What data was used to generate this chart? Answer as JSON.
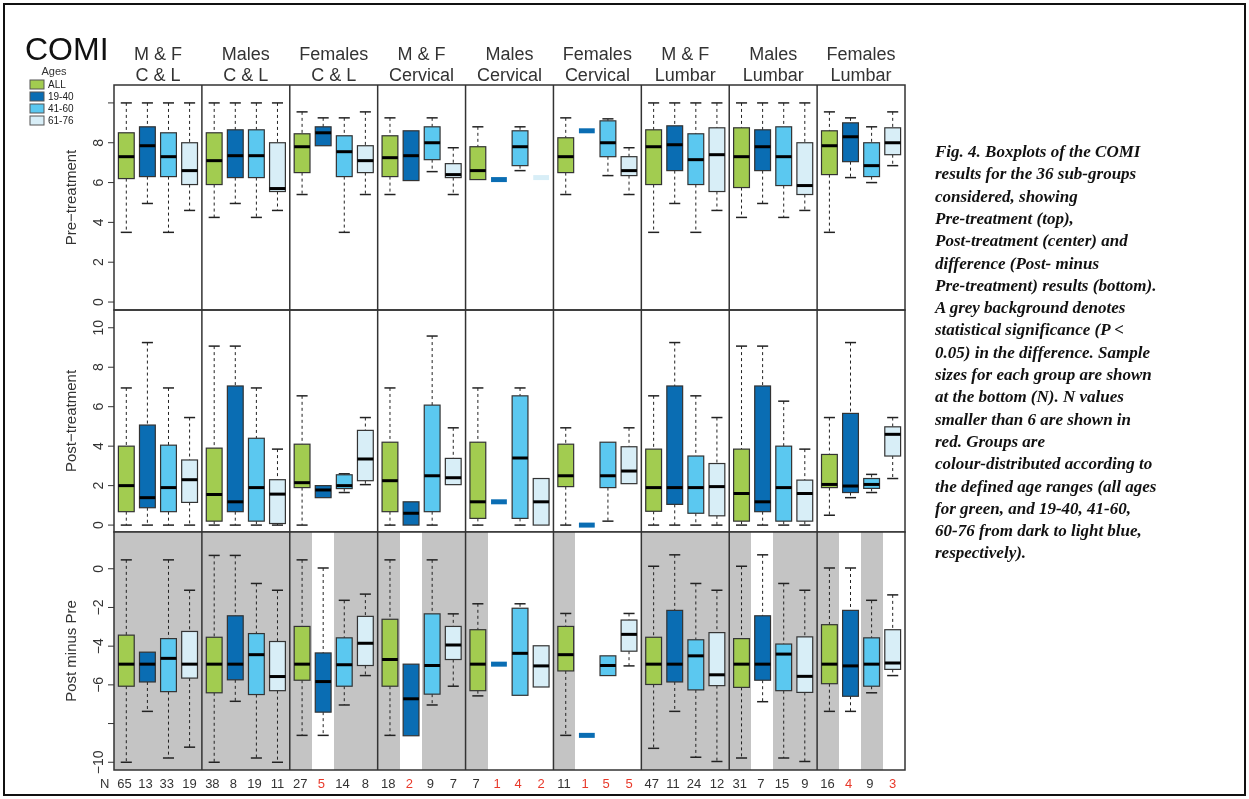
{
  "chart_data": [
    {
      "type": "box",
      "title": "COMI",
      "ylabel": "Pre−treatment",
      "legend_title": "Ages",
      "legend": "top left",
      "categories": [
        "M & F\nC & L",
        "Males\nC & L",
        "Females\nC & L",
        "M & F\nCervical",
        "Males\nCervical",
        "Females\nCervical",
        "M & F\nLumbar",
        "Males\nLumbar",
        "Females\nLumbar"
      ],
      "ylim": [
        -0.4,
        10.9
      ],
      "yticks": [
        0,
        2,
        4,
        6,
        8,
        {
          "value": 10,
          "label": null
        }
      ],
      "annotations": [
        "Fig. 4. Boxplots of the COMI results for the 36 sub-groups considered, showing Pre-treatment (top), Post-treatment (center) and difference (Post- minus Pre-treatment) results (bottom). A grey background denotes statistical significance (P < 0.05) in the difference. Sample sizes for each group are shown at the bottom (N). N values smaller than 6 are shown in red. Groups are colour-distributed according to the defined age ranges (all ages for green, and 19-40, 41-60, 60-76 from dark to light blue, respectively)."
      ],
      "series": [
        {
          "name": "ALL",
          "color": "#a2cc50",
          "boxes": [
            {
              "low": 3.5,
              "q1": 6.2,
              "median": 7.3,
              "q3": 8.5,
              "high": 10
            },
            {
              "low": 4.25,
              "q1": 5.9,
              "median": 7.1,
              "q3": 8.5,
              "high": 10
            },
            {
              "low": 5.4,
              "q1": 6.5,
              "median": 7.8,
              "q3": 8.45,
              "high": 9.55
            },
            {
              "low": 5.4,
              "q1": 6.3,
              "median": 7.25,
              "q3": 8.35,
              "high": 9.25
            },
            {
              "low": 6.15,
              "q1": 6.15,
              "median": 6.6,
              "q3": 7.8,
              "high": 8.8
            },
            {
              "low": 5.4,
              "q1": 6.5,
              "median": 7.3,
              "q3": 8.25,
              "high": 9.25
            },
            {
              "low": 3.5,
              "q1": 5.9,
              "median": 7.8,
              "q3": 8.65,
              "high": 10
            },
            {
              "low": 4.25,
              "q1": 5.75,
              "median": 7.3,
              "q3": 8.75,
              "high": 10
            },
            {
              "low": 3.5,
              "q1": 6.4,
              "median": 7.85,
              "q3": 8.6,
              "high": 9.55
            }
          ]
        },
        {
          "name": "19-40",
          "color": "#0a6db3",
          "boxes": [
            {
              "low": 4.95,
              "q1": 6.3,
              "median": 7.85,
              "q3": 8.8,
              "high": 10
            },
            {
              "low": 4.95,
              "q1": 6.25,
              "median": 7.35,
              "q3": 8.65,
              "high": 10
            },
            {
              "low": 7.85,
              "q1": 7.85,
              "median": 8.5,
              "q3": 8.8,
              "high": 9.25
            },
            {
              "low": 6.1,
              "q1": 6.1,
              "median": 7.35,
              "q3": 8.6,
              "high": 8.6
            },
            {
              "low": 6.15,
              "q1": 6.15,
              "median": 6.15,
              "q3": 6.15,
              "high": 6.15
            },
            {
              "low": 8.6,
              "q1": 8.6,
              "median": 8.6,
              "q3": 8.6,
              "high": 8.6
            },
            {
              "low": 4.95,
              "q1": 6.6,
              "median": 7.9,
              "q3": 8.85,
              "high": 10
            },
            {
              "low": 4.95,
              "q1": 6.6,
              "median": 7.8,
              "q3": 8.65,
              "high": 10
            },
            {
              "low": 6.25,
              "q1": 7.05,
              "median": 8.3,
              "q3": 9.0,
              "high": 9.25
            }
          ]
        },
        {
          "name": "41-60",
          "color": "#5bc8f0",
          "boxes": [
            {
              "low": 3.5,
              "q1": 6.3,
              "median": 7.3,
              "q3": 8.5,
              "high": 10
            },
            {
              "low": 4.25,
              "q1": 6.25,
              "median": 7.35,
              "q3": 8.65,
              "high": 10
            },
            {
              "low": 3.5,
              "q1": 6.3,
              "median": 7.55,
              "q3": 8.35,
              "high": 9.25
            },
            {
              "low": 6.55,
              "q1": 7.15,
              "median": 8.0,
              "q3": 8.8,
              "high": 9.25
            },
            {
              "low": 6.6,
              "q1": 6.85,
              "median": 7.8,
              "q3": 8.6,
              "high": 8.8
            },
            {
              "low": 6.35,
              "q1": 7.3,
              "median": 8.0,
              "q3": 9.1,
              "high": 9.2
            },
            {
              "low": 3.5,
              "q1": 5.9,
              "median": 7.15,
              "q3": 8.45,
              "high": 10
            },
            {
              "low": 4.25,
              "q1": 5.85,
              "median": 7.3,
              "q3": 8.8,
              "high": 10
            },
            {
              "low": 6.0,
              "q1": 6.3,
              "median": 6.85,
              "q3": 8.0,
              "high": 8.8
            }
          ]
        },
        {
          "name": "61-76",
          "color": "#d8eef7",
          "boxes": [
            {
              "low": 4.6,
              "q1": 5.9,
              "median": 6.6,
              "q3": 8.0,
              "high": 10
            },
            {
              "low": 4.6,
              "q1": 5.55,
              "median": 5.7,
              "q3": 8.0,
              "high": 10
            },
            {
              "low": 5.4,
              "q1": 6.5,
              "median": 7.1,
              "q3": 7.85,
              "high": 9.55
            },
            {
              "low": 5.4,
              "q1": 6.25,
              "median": 6.4,
              "q3": 6.95,
              "high": 7.75
            },
            {
              "low": 6.25,
              "q1": 6.25,
              "median": 6.25,
              "q3": 6.25,
              "high": 6.25
            },
            {
              "low": 5.4,
              "q1": 6.35,
              "median": 6.6,
              "q3": 7.3,
              "high": 7.75
            },
            {
              "low": 4.6,
              "q1": 5.55,
              "median": 7.4,
              "q3": 8.75,
              "high": 10
            },
            {
              "low": 4.6,
              "q1": 5.4,
              "median": 5.85,
              "q3": 8.0,
              "high": 10
            },
            {
              "low": 6.85,
              "q1": 7.4,
              "median": 8.0,
              "q3": 8.75,
              "high": 9.55
            }
          ]
        }
      ]
    },
    {
      "type": "box",
      "ylabel": "Post−treatment",
      "tick_labels": "y",
      "ylim": [
        -0.35,
        10.9
      ],
      "yticks": [
        0,
        2,
        4,
        6,
        8,
        10
      ],
      "series": [
        {
          "color": "#a2cc50",
          "boxes": [
            {
              "low": 0,
              "q1": 0.68,
              "median": 2.0,
              "q3": 4.0,
              "high": 6.95
            },
            {
              "low": 0,
              "q1": 0.2,
              "median": 1.55,
              "q3": 3.9,
              "high": 9.07
            },
            {
              "low": 0,
              "q1": 1.9,
              "median": 2.15,
              "q3": 4.1,
              "high": 6.55
            },
            {
              "low": 0,
              "q1": 0.68,
              "median": 2.25,
              "q3": 4.2,
              "high": 6.95
            },
            {
              "low": 0,
              "q1": 0.34,
              "median": 1.18,
              "q3": 4.2,
              "high": 6.95
            },
            {
              "low": 0,
              "q1": 1.95,
              "median": 2.5,
              "q3": 4.1,
              "high": 4.93
            },
            {
              "low": 0,
              "q1": 0.7,
              "median": 1.9,
              "q3": 3.85,
              "high": 6.55
            },
            {
              "low": 0,
              "q1": 0.2,
              "median": 1.6,
              "q3": 3.85,
              "high": 9.07
            },
            {
              "low": 0.5,
              "q1": 1.9,
              "median": 2.06,
              "q3": 3.58,
              "high": 5.45
            }
          ]
        },
        {
          "color": "#0a6db3",
          "boxes": [
            {
              "low": 0,
              "q1": 0.88,
              "median": 1.39,
              "q3": 5.07,
              "high": 9.25
            },
            {
              "low": 0,
              "q1": 0.68,
              "median": 1.18,
              "q3": 7.05,
              "high": 9.07
            },
            {
              "low": 1.39,
              "q1": 1.39,
              "median": 1.78,
              "q3": 2.0,
              "high": 2.0
            },
            {
              "low": 0,
              "q1": 0,
              "median": 0.6,
              "q3": 1.18,
              "high": 1.18
            },
            {
              "low": 1.18,
              "q1": 1.18,
              "median": 1.18,
              "q3": 1.18,
              "high": 1.18
            },
            {
              "low": 0,
              "q1": 0,
              "median": 0,
              "q3": 0,
              "high": 0
            },
            {
              "low": 0,
              "q1": 1.05,
              "median": 1.9,
              "q3": 7.05,
              "high": 9.25
            },
            {
              "low": 0,
              "q1": 0.68,
              "median": 1.18,
              "q3": 7.05,
              "high": 9.07
            },
            {
              "low": 1.39,
              "q1": 1.65,
              "median": 1.98,
              "q3": 5.66,
              "high": 9.25
            }
          ]
        },
        {
          "color": "#5bc8f0",
          "boxes": [
            {
              "low": 0,
              "q1": 0.68,
              "median": 1.9,
              "q3": 4.05,
              "high": 6.95
            },
            {
              "low": 0,
              "q1": 0.2,
              "median": 1.9,
              "q3": 4.4,
              "high": 6.95
            },
            {
              "low": 1.65,
              "q1": 1.85,
              "median": 2.0,
              "q3": 2.55,
              "high": 2.6
            },
            {
              "low": 0,
              "q1": 0.68,
              "median": 2.5,
              "q3": 6.08,
              "high": 9.58
            },
            {
              "low": 0,
              "q1": 0.34,
              "median": 3.4,
              "q3": 6.55,
              "high": 6.95
            },
            {
              "low": 0.2,
              "q1": 1.9,
              "median": 2.5,
              "q3": 4.2,
              "high": 4.2
            },
            {
              "low": 0,
              "q1": 0.6,
              "median": 1.9,
              "q3": 3.5,
              "high": 6.55
            },
            {
              "low": 0,
              "q1": 0.2,
              "median": 1.9,
              "q3": 4.0,
              "high": 6.28
            },
            {
              "low": 1.65,
              "q1": 1.86,
              "median": 2.06,
              "q3": 2.36,
              "high": 2.57
            }
          ]
        },
        {
          "color": "#d8eef7",
          "boxes": [
            {
              "low": 0,
              "q1": 1.15,
              "median": 2.3,
              "q3": 3.3,
              "high": 5.45
            },
            {
              "low": 0,
              "q1": 0.08,
              "median": 1.57,
              "q3": 2.3,
              "high": 3.85
            },
            {
              "low": 2.05,
              "q1": 2.25,
              "median": 3.35,
              "q3": 4.8,
              "high": 5.45
            },
            {
              "low": 2.05,
              "q1": 2.05,
              "median": 2.4,
              "q3": 3.38,
              "high": 4.93
            },
            {
              "low": 0,
              "q1": 0,
              "median": 1.18,
              "q3": 2.36,
              "high": 2.36
            },
            {
              "low": 2.1,
              "q1": 2.1,
              "median": 2.74,
              "q3": 3.97,
              "high": 4.93
            },
            {
              "low": 0,
              "q1": 0.47,
              "median": 1.95,
              "q3": 3.12,
              "high": 5.45
            },
            {
              "low": 0,
              "q1": 0.2,
              "median": 1.6,
              "q3": 2.28,
              "high": 3.85
            },
            {
              "low": 2.36,
              "q1": 3.5,
              "median": 4.6,
              "q3": 4.98,
              "high": 5.45
            }
          ]
        }
      ]
    },
    {
      "type": "box",
      "ylabel": "Post minus Pre",
      "tick_labels": "y",
      "ylim": [
        -10.4,
        1.9
      ],
      "yticks": [
        {
          "value": -10,
          "label": "−10"
        },
        {
          "value": -8,
          "label": null
        },
        {
          "value": -6,
          "label": "−6"
        },
        {
          "value": -4,
          "label": "−4"
        },
        {
          "value": -2,
          "label": "−2"
        },
        0
      ],
      "annotations": [
        "N",
        "65 13 33 19",
        "38 8 19 11",
        "27 5 14 8",
        "18 2 9 7",
        "7 1 4 2",
        "11 1 5 5",
        "47 11 24 12",
        "31 7 15 9",
        "16 4 9 3"
      ],
      "series": [
        {
          "color": "#a2cc50",
          "boxes": [
            {
              "low": -10,
              "q1": -6.07,
              "median": -4.93,
              "q3": -3.43,
              "high": 0.46
            },
            {
              "low": -10,
              "q1": -6.41,
              "median": -4.93,
              "q3": -3.54,
              "high": 0.69
            },
            {
              "low": -8.61,
              "q1": -5.76,
              "median": -4.93,
              "q3": -2.98,
              "high": 0.46
            },
            {
              "low": -8.61,
              "q1": -6.07,
              "median": -4.69,
              "q3": -2.61,
              "high": 0.46
            },
            {
              "low": -6.57,
              "q1": -6.3,
              "median": -4.93,
              "q3": -3.15,
              "high": -1.81
            },
            {
              "low": -8.61,
              "q1": -5.28,
              "median": -4.44,
              "q3": -2.98,
              "high": -2.31
            },
            {
              "low": -9.28,
              "q1": -5.98,
              "median": -4.93,
              "q3": -3.54,
              "high": 0.13
            },
            {
              "low": -9.78,
              "q1": -6.13,
              "median": -4.93,
              "q3": -3.61,
              "high": 0.13
            },
            {
              "low": -7.37,
              "q1": -5.94,
              "median": -4.93,
              "q3": -2.89,
              "high": 0.04
            }
          ]
        },
        {
          "color": "#0a6db3",
          "boxes": [
            {
              "low": -7.37,
              "q1": -5.85,
              "median": -4.93,
              "q3": -4.31,
              "high": -4.31
            },
            {
              "low": -6.85,
              "q1": -5.74,
              "median": -4.93,
              "q3": -2.43,
              "high": 0.69
            },
            {
              "low": -8.61,
              "q1": -7.41,
              "median": -5.83,
              "q3": -4.35,
              "high": 0.04
            },
            {
              "low": -8.63,
              "q1": -8.63,
              "median": -6.72,
              "q3": -4.93,
              "high": -4.93
            },
            {
              "low": -4.93,
              "q1": -4.93,
              "median": -4.93,
              "q3": -4.93,
              "high": -4.93
            },
            {
              "low": -8.61,
              "q1": -8.61,
              "median": -8.61,
              "q3": -8.61,
              "high": -8.61
            },
            {
              "low": -7.37,
              "q1": -5.85,
              "median": -4.93,
              "q3": -2.15,
              "high": 0.72
            },
            {
              "low": -6.87,
              "q1": -5.76,
              "median": -4.93,
              "q3": -2.43,
              "high": 0.72
            },
            {
              "low": -7.37,
              "q1": -6.59,
              "median": -5.02,
              "q3": -2.15,
              "high": 0.04
            }
          ]
        },
        {
          "color": "#5bc8f0",
          "boxes": [
            {
              "low": -9.78,
              "q1": -6.35,
              "median": -4.63,
              "q3": -3.61,
              "high": 0.46
            },
            {
              "low": -9.78,
              "q1": -6.5,
              "median": -4.44,
              "q3": -3.35,
              "high": -0.76
            },
            {
              "low": -7.04,
              "q1": -6.07,
              "median": -4.96,
              "q3": -3.57,
              "high": -1.63
            },
            {
              "low": -7.04,
              "q1": -6.48,
              "median": -5.0,
              "q3": -2.33,
              "high": 0.46
            },
            {
              "low": -6.54,
              "q1": -6.54,
              "median": -4.37,
              "q3": -2.04,
              "high": -1.81
            },
            {
              "low": -5.52,
              "q1": -5.52,
              "median": -5.0,
              "q3": -4.5,
              "high": -4.5
            },
            {
              "low": -9.74,
              "q1": -6.26,
              "median": -4.5,
              "q3": -3.67,
              "high": -0.76
            },
            {
              "low": -9.78,
              "q1": -6.3,
              "median": -4.41,
              "q3": -3.89,
              "high": -0.76
            },
            {
              "low": -6.41,
              "q1": -6.07,
              "median": -4.93,
              "q3": -3.57,
              "high": -1.63
            }
          ]
        },
        {
          "color": "#d8eef7",
          "boxes": [
            {
              "low": -9.22,
              "q1": -5.65,
              "median": -4.93,
              "q3": -3.24,
              "high": -1.11
            },
            {
              "low": -10,
              "q1": -6.3,
              "median": -5.57,
              "q3": -3.76,
              "high": -1.11
            },
            {
              "low": -5.52,
              "q1": -5.0,
              "median": -3.85,
              "q3": -2.46,
              "high": -1.31
            },
            {
              "low": -6.07,
              "q1": -4.69,
              "median": -3.94,
              "q3": -2.98,
              "high": -2.33
            },
            {
              "low": -6.11,
              "q1": -6.11,
              "median": -5.02,
              "q3": -3.98,
              "high": -3.98
            },
            {
              "low": -5.02,
              "q1": -4.26,
              "median": -3.39,
              "q3": -2.65,
              "high": -2.31
            },
            {
              "low": -9.96,
              "q1": -6.04,
              "median": -5.48,
              "q3": -3.3,
              "high": -1.11
            },
            {
              "low": -9.96,
              "q1": -6.39,
              "median": -5.56,
              "q3": -3.52,
              "high": -1.11
            },
            {
              "low": -5.52,
              "q1": -5.2,
              "median": -4.87,
              "q3": -3.15,
              "high": -1.35
            }
          ]
        }
      ]
    }
  ]
}
